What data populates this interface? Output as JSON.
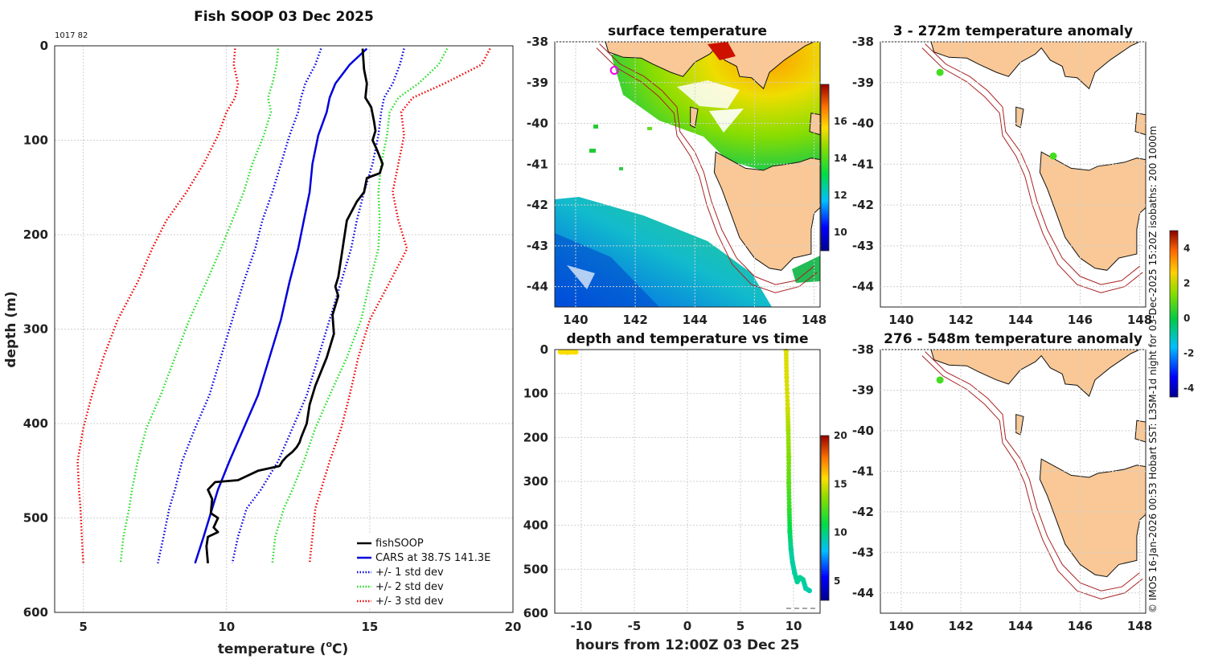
{
  "chart_data": [
    {
      "type": "line",
      "title": "Fish SOOP 03 Dec 2025",
      "corner_label": "1017 82",
      "xlabel": "temperature (°C)",
      "xlabel_main": "temperature (",
      "xlabel_sup": "o",
      "xlabel_end": "C)",
      "ylabel": "depth (m)",
      "xlim": [
        4,
        20
      ],
      "ylim": [
        600,
        0
      ],
      "xticks": [
        5,
        10,
        15,
        20
      ],
      "yticks": [
        0,
        100,
        200,
        300,
        400,
        500,
        600
      ],
      "legend": [
        "fishSOOP",
        "CARS at 38.7S 141.3E",
        "+/- 1 std dev",
        "+/- 2 std dev",
        "+/- 3 std dev"
      ],
      "colors": {
        "fishsoop": "#000000",
        "cars": "#0000dd",
        "std1": "#0000dd",
        "std2": "#22dd22",
        "std3": "#ee0000"
      },
      "series": [
        {
          "name": "fishSOOP",
          "x": [
            14.75,
            14.8,
            14.9,
            14.85,
            15.05,
            15.15,
            15.2,
            15.1,
            15.25,
            15.45,
            15.35,
            14.9,
            14.8,
            14.55,
            14.2,
            14.1,
            14.0,
            13.9,
            13.8,
            13.9,
            13.7,
            13.75,
            13.5,
            13.1,
            12.9,
            12.8,
            12.6,
            12.55,
            12.45,
            12.3,
            12.1,
            11.95,
            11.85,
            11.1,
            10.75,
            10.4,
            9.6,
            9.35,
            9.5,
            9.45,
            9.7,
            9.55,
            9.7,
            9.35,
            9.3,
            9.35
          ],
          "y": [
            3,
            25,
            40,
            55,
            65,
            80,
            90,
            100,
            110,
            125,
            135,
            140,
            155,
            165,
            185,
            205,
            225,
            245,
            255,
            265,
            285,
            305,
            330,
            360,
            380,
            400,
            415,
            420,
            425,
            430,
            435,
            440,
            445,
            450,
            455,
            460,
            462,
            470,
            480,
            495,
            500,
            510,
            515,
            520,
            530,
            548
          ]
        },
        {
          "name": "CARS",
          "x": [
            14.9,
            14.3,
            13.8,
            13.6,
            13.5,
            13.2,
            13.0,
            12.9,
            12.7,
            12.5,
            12.2,
            11.9,
            11.5,
            11.1,
            10.6,
            10.1,
            9.7,
            9.5,
            9.2,
            8.9
          ],
          "y": [
            3,
            20,
            40,
            55,
            70,
            95,
            125,
            155,
            185,
            215,
            250,
            290,
            330,
            370,
            405,
            440,
            470,
            490,
            520,
            548
          ]
        },
        {
          "name": "+1 std",
          "x": [
            16.2,
            16.05,
            15.8,
            15.5,
            15.4,
            15.3,
            15.1,
            14.8,
            14.55,
            14.35,
            14.0,
            13.6,
            13.2,
            12.8,
            12.3,
            11.8,
            11.2,
            10.7,
            10.4,
            10.2
          ],
          "y": [
            3,
            20,
            40,
            55,
            70,
            95,
            125,
            155,
            185,
            215,
            250,
            290,
            330,
            370,
            405,
            440,
            470,
            490,
            520,
            548
          ]
        },
        {
          "name": "-1 std",
          "x": [
            13.3,
            13.1,
            12.75,
            12.6,
            12.5,
            12.2,
            11.9,
            11.6,
            11.25,
            11.0,
            10.6,
            10.2,
            9.8,
            9.4,
            8.9,
            8.45,
            8.2,
            8.0,
            7.8,
            7.6
          ],
          "y": [
            3,
            20,
            40,
            55,
            70,
            95,
            125,
            155,
            185,
            215,
            250,
            290,
            330,
            370,
            405,
            440,
            470,
            490,
            520,
            548
          ]
        },
        {
          "name": "+2 std",
          "x": [
            17.7,
            17.4,
            16.7,
            16.0,
            15.7,
            15.6,
            15.4,
            15.3,
            15.35,
            15.3,
            15.0,
            14.7,
            14.2,
            13.6,
            13.1,
            12.7,
            12.3,
            12.0,
            11.7,
            11.6
          ],
          "y": [
            3,
            20,
            40,
            55,
            70,
            95,
            125,
            155,
            185,
            215,
            250,
            290,
            330,
            370,
            405,
            440,
            470,
            490,
            520,
            548
          ]
        },
        {
          "name": "-2 std",
          "x": [
            11.8,
            11.75,
            11.6,
            11.45,
            11.55,
            11.3,
            10.9,
            10.6,
            10.2,
            9.8,
            9.3,
            8.7,
            8.2,
            7.7,
            7.2,
            6.9,
            6.7,
            6.6,
            6.4,
            6.3
          ],
          "y": [
            3,
            20,
            40,
            55,
            70,
            95,
            125,
            155,
            185,
            215,
            250,
            290,
            330,
            370,
            405,
            440,
            470,
            490,
            520,
            548
          ]
        },
        {
          "name": "+3 std",
          "x": [
            19.2,
            18.9,
            17.6,
            16.5,
            16.1,
            16.2,
            16.0,
            15.8,
            16.0,
            16.3,
            15.7,
            15.0,
            14.6,
            14.3,
            14.0,
            13.6,
            13.3,
            13.1,
            13.0,
            12.9
          ],
          "y": [
            3,
            20,
            40,
            55,
            70,
            95,
            125,
            155,
            185,
            215,
            250,
            290,
            330,
            370,
            405,
            440,
            470,
            490,
            520,
            548
          ]
        },
        {
          "name": "-3 std",
          "x": [
            10.3,
            10.25,
            10.4,
            10.3,
            10.0,
            9.7,
            9.2,
            8.6,
            7.9,
            7.4,
            6.9,
            6.2,
            5.7,
            5.3,
            5.0,
            4.8,
            4.85,
            4.9,
            4.95,
            5.0
          ],
          "y": [
            3,
            20,
            40,
            55,
            70,
            95,
            125,
            155,
            185,
            215,
            250,
            290,
            330,
            370,
            405,
            440,
            470,
            490,
            520,
            548
          ]
        }
      ]
    },
    {
      "type": "heatmap",
      "title": "surface temperature",
      "xlim": [
        139.3,
        148.2
      ],
      "ylim": [
        -44.5,
        -38
      ],
      "xticks": [
        140,
        142,
        144,
        146,
        148
      ],
      "yticks": [
        -38,
        -39,
        -40,
        -41,
        -42,
        -43,
        -44
      ],
      "colorbar_ticks": [
        10,
        12,
        14,
        16
      ],
      "colorbar_range": [
        9,
        18
      ],
      "marker": {
        "lon": 141.3,
        "lat": -38.7
      }
    },
    {
      "type": "scatter",
      "title": "depth and temperature vs time",
      "xlabel": "hours from 12:00Z 03 Dec 25",
      "xlim": [
        -12.5,
        12.5
      ],
      "ylim": [
        600,
        0
      ],
      "xticks": [
        -10,
        -5,
        0,
        5,
        10
      ],
      "yticks": [
        0,
        100,
        200,
        300,
        400,
        500,
        600
      ],
      "colorbar_ticks": [
        5,
        10,
        15,
        20
      ],
      "colorbar_range": [
        3,
        20
      ],
      "points": [
        {
          "t": -11.9,
          "depth": 2,
          "temp": 15.5
        },
        {
          "t": -11.3,
          "depth": 3,
          "temp": 15.5
        },
        {
          "t": -10.5,
          "depth": 2,
          "temp": 15.5
        },
        {
          "t": 9.3,
          "depth": 0,
          "temp": 15.0
        },
        {
          "t": 9.35,
          "depth": 60,
          "temp": 15.0
        },
        {
          "t": 9.45,
          "depth": 130,
          "temp": 14.8
        },
        {
          "t": 9.5,
          "depth": 180,
          "temp": 14.0
        },
        {
          "t": 9.55,
          "depth": 240,
          "temp": 13.4
        },
        {
          "t": 9.55,
          "depth": 300,
          "temp": 12.6
        },
        {
          "t": 9.6,
          "depth": 360,
          "temp": 11.8
        },
        {
          "t": 9.65,
          "depth": 410,
          "temp": 10.6
        },
        {
          "t": 9.75,
          "depth": 450,
          "temp": 9.6
        },
        {
          "t": 9.9,
          "depth": 480,
          "temp": 9.4
        },
        {
          "t": 10.1,
          "depth": 505,
          "temp": 9.5
        },
        {
          "t": 10.35,
          "depth": 525,
          "temp": 9.6
        },
        {
          "t": 10.6,
          "depth": 515,
          "temp": 9.7
        },
        {
          "t": 10.9,
          "depth": 520,
          "temp": 9.6
        },
        {
          "t": 11.15,
          "depth": 540,
          "temp": 9.4
        },
        {
          "t": 11.5,
          "depth": 545,
          "temp": 9.3
        }
      ]
    },
    {
      "type": "heatmap",
      "title": "3 - 272m temperature anomaly",
      "xlim": [
        139.3,
        148.2
      ],
      "ylim": [
        -44.5,
        -38
      ],
      "xticks": [
        140,
        142,
        144,
        146,
        148
      ],
      "yticks": [
        -38,
        -39,
        -40,
        -41,
        -42,
        -43,
        -44
      ],
      "dots": [
        {
          "lon": 141.3,
          "lat": -38.75
        },
        {
          "lon": 145.1,
          "lat": -40.8
        }
      ]
    },
    {
      "type": "heatmap",
      "title": "276 - 548m temperature anomaly",
      "xlim": [
        139.3,
        148.2
      ],
      "ylim": [
        -44.5,
        -38
      ],
      "xticks": [
        140,
        142,
        144,
        146,
        148
      ],
      "yticks": [
        -38,
        -39,
        -40,
        -41,
        -42,
        -43,
        -44
      ],
      "dots": [
        {
          "lon": 141.3,
          "lat": -38.75
        }
      ]
    },
    {
      "type": "colorbar",
      "ticks": [
        4,
        2,
        0,
        -2,
        -4
      ],
      "range": [
        -4.5,
        5.0
      ]
    }
  ],
  "side_text": "© IMOS 16-Jan-2026 00:53 Hobart SST: L3SM-1d night for 03-Dec-2025 15:20Z isobaths: 200  1000m",
  "colors": {
    "land": "#f9c896",
    "isobath": "#aa2222"
  }
}
